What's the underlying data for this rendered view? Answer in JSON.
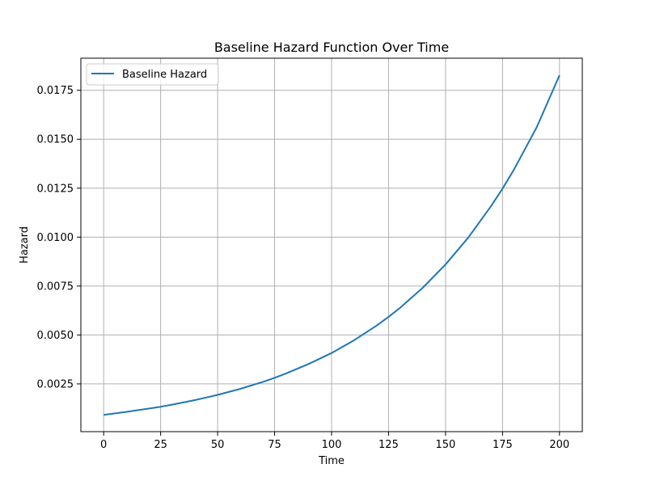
{
  "chart_data": {
    "type": "line",
    "title": "Baseline Hazard Function Over Time",
    "xlabel": "Time",
    "ylabel": "Hazard",
    "xlim": [
      -10,
      210
    ],
    "ylim": [
      6e-05,
      0.01914
    ],
    "xticks": [
      0,
      25,
      50,
      75,
      100,
      125,
      150,
      175,
      200
    ],
    "xtick_labels": [
      "0",
      "25",
      "50",
      "75",
      "100",
      "125",
      "150",
      "175",
      "200"
    ],
    "yticks": [
      0.0025,
      0.005,
      0.0075,
      0.01,
      0.0125,
      0.015,
      0.0175
    ],
    "ytick_labels": [
      "0.0025",
      "0.0050",
      "0.0075",
      "0.0100",
      "0.0125",
      "0.0150",
      "0.0175"
    ],
    "grid": true,
    "legend_position": "top-left",
    "series": [
      {
        "name": "Baseline Hazard",
        "color": "#1f77b4",
        "x": [
          0,
          10,
          20,
          25,
          30,
          40,
          50,
          60,
          70,
          75,
          80,
          90,
          100,
          110,
          120,
          125,
          130,
          140,
          150,
          160,
          170,
          175,
          180,
          190,
          200
        ],
        "y": [
          0.00092,
          0.00107,
          0.00124,
          0.00133,
          0.00144,
          0.00167,
          0.00194,
          0.00225,
          0.00261,
          0.00281,
          0.00303,
          0.00352,
          0.00408,
          0.00474,
          0.0055,
          0.00593,
          0.00638,
          0.00741,
          0.0086,
          0.00998,
          0.01159,
          0.01248,
          0.01345,
          0.01561,
          0.01827
        ]
      }
    ]
  }
}
